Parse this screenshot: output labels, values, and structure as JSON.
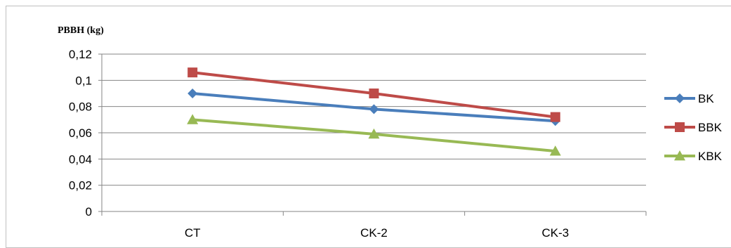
{
  "chart_data": {
    "type": "line",
    "ylabel": "PBBH (kg)",
    "xlabel": "",
    "title": "",
    "categories": [
      "CT",
      "CK-2",
      "CK-3"
    ],
    "ylim": [
      0,
      0.12
    ],
    "yticks": [
      0,
      0.02,
      0.04,
      0.06,
      0.08,
      0.1,
      0.12
    ],
    "ytick_labels": [
      "0",
      "0,02",
      "0,04",
      "0,06",
      "0,08",
      "0,1",
      "0,12"
    ],
    "grid": true,
    "legend_position": "right",
    "series": [
      {
        "name": "BK",
        "values": [
          0.09,
          0.078,
          0.069
        ],
        "color": "#4a7ebb",
        "marker": "diamond"
      },
      {
        "name": "BBK",
        "values": [
          0.106,
          0.09,
          0.072
        ],
        "color": "#be4b48",
        "marker": "square"
      },
      {
        "name": "KBK",
        "values": [
          0.07,
          0.059,
          0.046
        ],
        "color": "#98b954",
        "marker": "triangle"
      }
    ]
  }
}
